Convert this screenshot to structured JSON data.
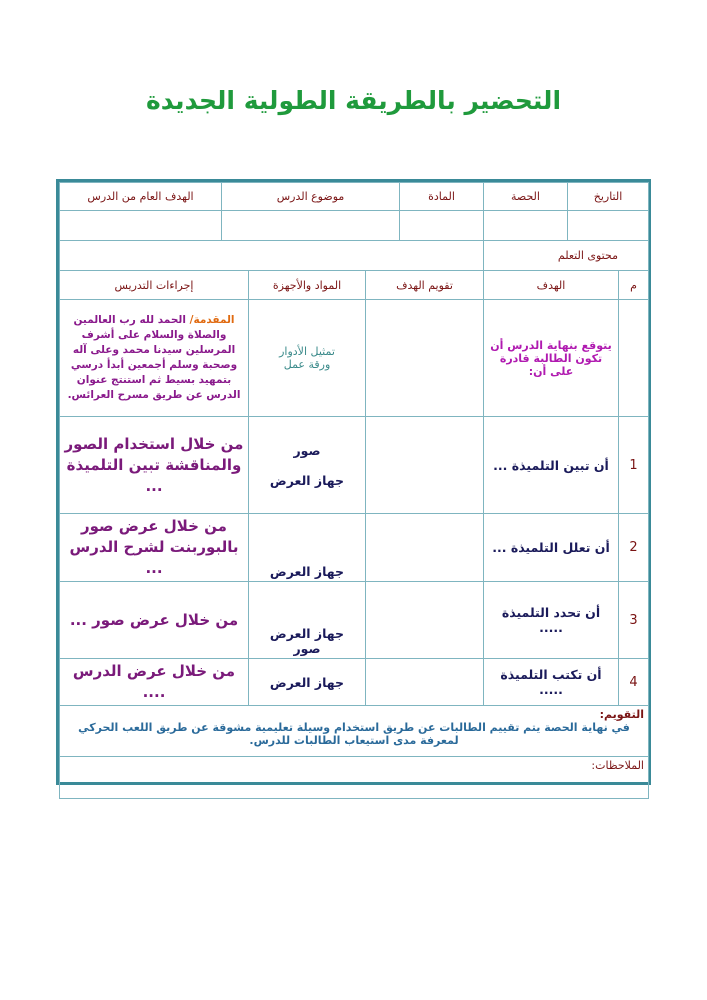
{
  "title": "التحضير بالطريقة الطولية الجديدة",
  "header": {
    "date": "التاريخ",
    "period": "الحصة",
    "subject": "المادة",
    "topic": "موضوع الدرس",
    "general_goal": "الهدف العام من الدرس"
  },
  "learning_content": "محتوى التعلم",
  "columns": {
    "num": "م",
    "goal": "الهدف",
    "goal_eval": "تقويم الهدف",
    "materials": "المواد والأجهزة",
    "procedures": "إجراءات التدريس"
  },
  "intro": {
    "goal": "يتوقع بنهاية الدرس أن تكون الطالبة قادرة على أن:",
    "materials_1": "تمثيل الأدوار",
    "materials_2": "ورقة عمل",
    "label": "المقدمة/",
    "text": "الحمد لله رب العالمين والصلاة والسلام على أشرف المرسلين سيدنا محمد وعلى آله وصحبة وسلم أجمعين أبدأ درسي بتمهيد بسيط ثم استنتج عنوان الدرس عن طريق مسرح العرائس."
  },
  "rows": [
    {
      "num": "1",
      "goal": "أن تبين التلميذة ...",
      "materials_1": "صور",
      "materials_2": "جهاز العرض",
      "procedure": "من خلال استخدام الصور والمناقشة تبين التلميذة ..."
    },
    {
      "num": "2",
      "goal": "أن تعلل التلميذة ...",
      "materials_1": "",
      "materials_2": "جهاز العرض",
      "procedure": "من خلال عرض صور بالبوربنت لشرح الدرس ..."
    },
    {
      "num": "3",
      "goal": "أن تحدد التلميذة .....",
      "materials_1": "جهاز العرض",
      "materials_2": "صور",
      "procedure": "من خلال عرض صور ..."
    },
    {
      "num": "4",
      "goal": "أن تكتب التلميذة .....",
      "materials_1": "جهاز العرض",
      "materials_2": "",
      "procedure": "من خلال عرض الدرس ...."
    }
  ],
  "evaluation": {
    "label": "التقويم:",
    "text": "في نهاية الحصة يتم تقييم الطالبات عن طريق استخدام وسيلة تعليمية مشوقة عن طريق اللعب الحركي لمعرفة مدى استيعاب الطالبات للدرس."
  },
  "notes": {
    "label": "الملاحظات:"
  }
}
